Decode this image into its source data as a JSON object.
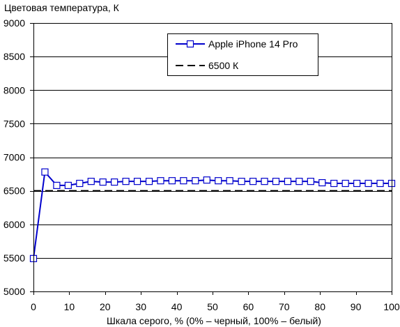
{
  "chart_data": {
    "type": "line",
    "ylabel": "Цветовая температура, К",
    "xlabel": "Шкала серого, % (0% – черный, 100% – белый)",
    "xlim": [
      0,
      100
    ],
    "ylim": [
      5000,
      9000
    ],
    "x_ticks": [
      0,
      10,
      20,
      30,
      40,
      50,
      60,
      70,
      80,
      90,
      100
    ],
    "y_ticks": [
      5000,
      5500,
      6000,
      6500,
      7000,
      7500,
      8000,
      8500,
      9000
    ],
    "grid": "horizontal",
    "legend_position": "top-right",
    "series": [
      {
        "name": "Apple iPhone 14 Pro",
        "color": "#0000cc",
        "marker": "square",
        "line_style": "solid",
        "x": [
          0,
          3.2,
          6.5,
          9.7,
          12.9,
          16.1,
          19.4,
          22.6,
          25.8,
          29.0,
          32.3,
          35.5,
          38.7,
          41.9,
          45.2,
          48.4,
          51.6,
          54.8,
          58.1,
          61.3,
          64.5,
          67.7,
          71.0,
          74.2,
          77.4,
          80.6,
          83.9,
          87.1,
          90.3,
          93.5,
          96.8,
          100
        ],
        "y": [
          5490,
          6780,
          6580,
          6580,
          6610,
          6640,
          6630,
          6630,
          6640,
          6640,
          6640,
          6650,
          6650,
          6650,
          6650,
          6660,
          6650,
          6650,
          6640,
          6640,
          6640,
          6640,
          6640,
          6640,
          6640,
          6620,
          6610,
          6610,
          6610,
          6610,
          6610,
          6610
        ]
      },
      {
        "name": "6500 К",
        "color": "#000000",
        "marker": "none",
        "line_style": "dashed",
        "x": [
          0,
          100
        ],
        "y": [
          6500,
          6500
        ]
      }
    ]
  }
}
